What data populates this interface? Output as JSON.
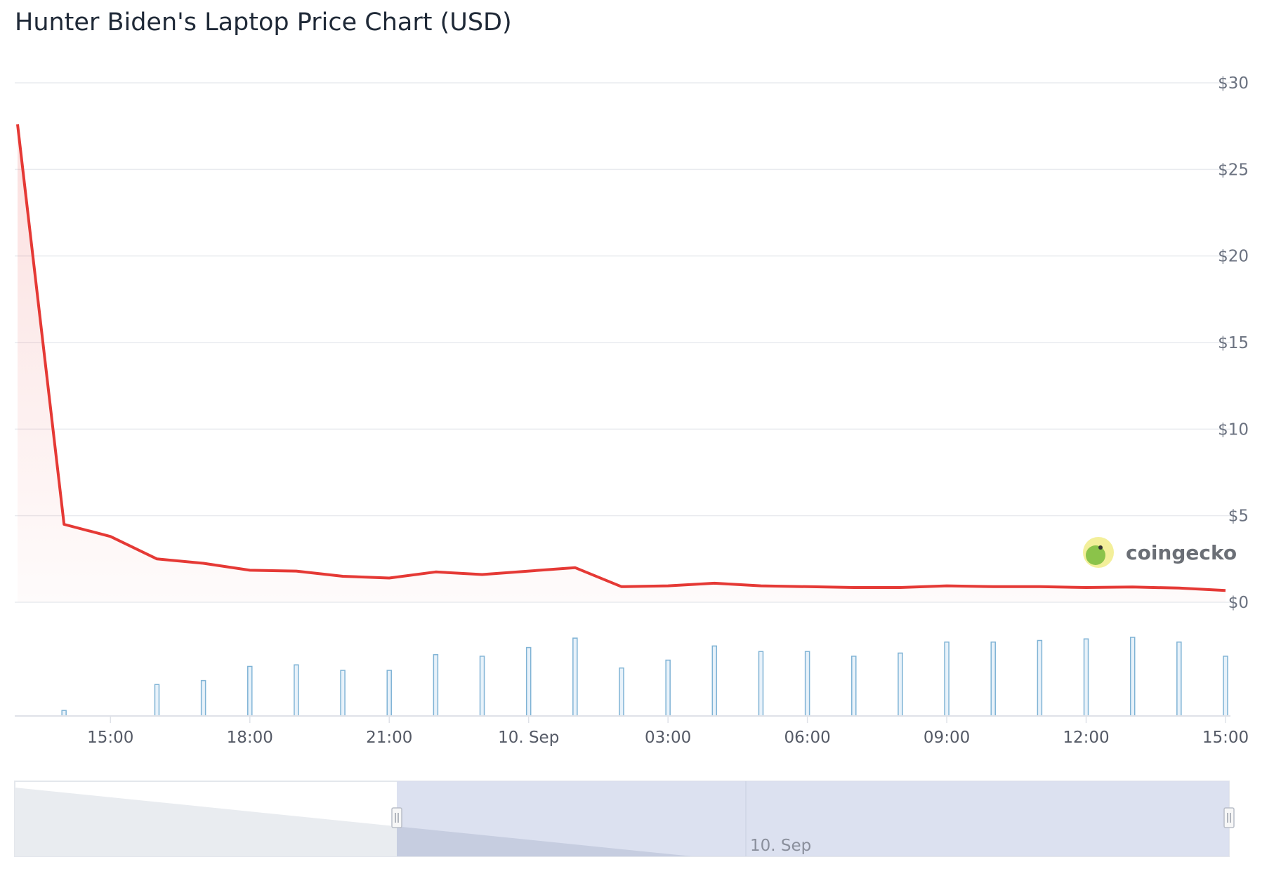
{
  "chart_data": {
    "type": "line",
    "title": "Hunter Biden's Laptop Price Chart (USD)",
    "y_ticks": [
      {
        "value": 0,
        "label": "$0"
      },
      {
        "value": 5,
        "label": "$5"
      },
      {
        "value": 10,
        "label": "$10"
      },
      {
        "value": 15,
        "label": "$15"
      },
      {
        "value": 20,
        "label": "$20"
      },
      {
        "value": 25,
        "label": "$25"
      },
      {
        "value": 30,
        "label": "$30"
      }
    ],
    "ylim": [
      0,
      30
    ],
    "x_ticks": [
      {
        "hours": 15,
        "label": "15:00"
      },
      {
        "hours": 18,
        "label": "18:00"
      },
      {
        "hours": 21,
        "label": "21:00"
      },
      {
        "hours": 24,
        "label": "10. Sep"
      },
      {
        "hours": 27,
        "label": "03:00"
      },
      {
        "hours": 30,
        "label": "06:00"
      },
      {
        "hours": 33,
        "label": "09:00"
      },
      {
        "hours": 36,
        "label": "12:00"
      },
      {
        "hours": 39,
        "label": "15:00"
      }
    ],
    "grid": true,
    "series": [
      {
        "color": "#e53935",
        "points": [
          {
            "hours": 13.0,
            "price": 27.6
          },
          {
            "hours": 14.0,
            "price": 4.5
          },
          {
            "hours": 15.0,
            "price": 3.8
          },
          {
            "hours": 16.0,
            "price": 2.5
          },
          {
            "hours": 17.0,
            "price": 2.25
          },
          {
            "hours": 18.0,
            "price": 1.85
          },
          {
            "hours": 19.0,
            "price": 1.8
          },
          {
            "hours": 20.0,
            "price": 1.5
          },
          {
            "hours": 21.0,
            "price": 1.4
          },
          {
            "hours": 22.0,
            "price": 1.75
          },
          {
            "hours": 23.0,
            "price": 1.6
          },
          {
            "hours": 24.0,
            "price": 1.8
          },
          {
            "hours": 25.0,
            "price": 2.0
          },
          {
            "hours": 26.0,
            "price": 0.9
          },
          {
            "hours": 27.0,
            "price": 0.95
          },
          {
            "hours": 28.0,
            "price": 1.1
          },
          {
            "hours": 29.0,
            "price": 0.95
          },
          {
            "hours": 30.0,
            "price": 0.9
          },
          {
            "hours": 31.0,
            "price": 0.85
          },
          {
            "hours": 32.0,
            "price": 0.85
          },
          {
            "hours": 33.0,
            "price": 0.95
          },
          {
            "hours": 34.0,
            "price": 0.9
          },
          {
            "hours": 35.0,
            "price": 0.9
          },
          {
            "hours": 36.0,
            "price": 0.85
          },
          {
            "hours": 37.0,
            "price": 0.88
          },
          {
            "hours": 38.0,
            "price": 0.82
          },
          {
            "hours": 39.0,
            "price": 0.68
          }
        ]
      },
      {
        "type": "bar",
        "color": "#7fb3d5",
        "note_relative_volume": true,
        "points": [
          {
            "hours": 14.0,
            "volume": 0.07
          },
          {
            "hours": 16.0,
            "volume": 0.4
          },
          {
            "hours": 17.0,
            "volume": 0.45
          },
          {
            "hours": 18.0,
            "volume": 0.63
          },
          {
            "hours": 19.0,
            "volume": 0.65
          },
          {
            "hours": 20.0,
            "volume": 0.58
          },
          {
            "hours": 21.0,
            "volume": 0.58
          },
          {
            "hours": 22.0,
            "volume": 0.78
          },
          {
            "hours": 23.0,
            "volume": 0.76
          },
          {
            "hours": 24.0,
            "volume": 0.87
          },
          {
            "hours": 25.0,
            "volume": 0.99
          },
          {
            "hours": 26.0,
            "volume": 0.61
          },
          {
            "hours": 27.0,
            "volume": 0.71
          },
          {
            "hours": 28.0,
            "volume": 0.89
          },
          {
            "hours": 29.0,
            "volume": 0.82
          },
          {
            "hours": 30.0,
            "volume": 0.82
          },
          {
            "hours": 31.0,
            "volume": 0.76
          },
          {
            "hours": 32.0,
            "volume": 0.8
          },
          {
            "hours": 33.0,
            "volume": 0.94
          },
          {
            "hours": 34.0,
            "volume": 0.94
          },
          {
            "hours": 35.0,
            "volume": 0.96
          },
          {
            "hours": 36.0,
            "volume": 0.98
          },
          {
            "hours": 37.0,
            "volume": 1.0
          },
          {
            "hours": 38.0,
            "volume": 0.94
          },
          {
            "hours": 39.0,
            "volume": 0.76
          }
        ]
      }
    ],
    "navigator": {
      "label": "10. Sep"
    }
  },
  "brand": {
    "name": "coingecko"
  },
  "colors": {
    "line": "#e53935",
    "volume": "#7fb3d5",
    "grid": "#e9ebef",
    "navigator_selection": "#d8deee"
  }
}
